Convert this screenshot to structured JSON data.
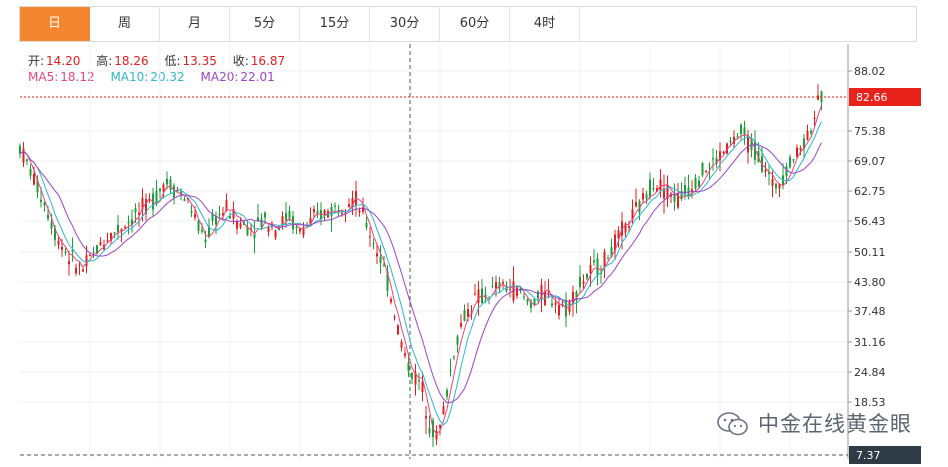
{
  "tabs": [
    "日",
    "周",
    "月",
    "5分",
    "15分",
    "30分",
    "60分",
    "4时"
  ],
  "active_tab": 0,
  "info": {
    "open_label": "开:",
    "open": "14.20",
    "high_label": "高:",
    "high": "18.26",
    "low_label": "低:",
    "low": "13.35",
    "close_label": "收:",
    "close": "16.87",
    "ma5_label": "MA5:",
    "ma5": "18.12",
    "ma10_label": "MA10:",
    "ma10": "20.32",
    "ma20_label": "MA20:",
    "ma20": "22.01"
  },
  "watermark": "中金在线黄金眼",
  "colors": {
    "up": "#e02020",
    "down": "#1e9e3a",
    "ma5": "#e8467a",
    "ma10": "#2fb6c9",
    "ma20": "#9b45c7",
    "price_tag": "#e8231b",
    "low_tag": "#2e3a46",
    "active_tab": "#f4862f"
  },
  "chart_data": {
    "type": "candlestick",
    "y_ticks": [
      "88.02",
      "82.66",
      "75.38",
      "69.07",
      "62.75",
      "56.43",
      "50.11",
      "43.80",
      "37.48",
      "31.16",
      "24.84",
      "18.53",
      "7.37"
    ],
    "y_tick_values": [
      88.02,
      82.66,
      75.38,
      69.07,
      62.75,
      56.43,
      50.11,
      43.8,
      37.48,
      31.16,
      24.84,
      18.53,
      7.37
    ],
    "ylim": [
      7.37,
      92.0
    ],
    "current_price": 82.66,
    "current_price_label": "82.66",
    "low_marker": 7.37,
    "low_marker_label": "7.37",
    "crosshair_x_fraction": 0.5,
    "approx_close_path": [
      [
        0.0,
        72
      ],
      [
        0.015,
        66
      ],
      [
        0.03,
        60
      ],
      [
        0.045,
        53
      ],
      [
        0.06,
        49
      ],
      [
        0.075,
        46
      ],
      [
        0.09,
        50
      ],
      [
        0.105,
        53
      ],
      [
        0.12,
        55
      ],
      [
        0.135,
        57
      ],
      [
        0.15,
        59
      ],
      [
        0.165,
        62
      ],
      [
        0.175,
        65
      ],
      [
        0.19,
        63
      ],
      [
        0.205,
        60
      ],
      [
        0.215,
        55
      ],
      [
        0.225,
        53
      ],
      [
        0.235,
        57
      ],
      [
        0.25,
        59
      ],
      [
        0.265,
        56
      ],
      [
        0.28,
        55
      ],
      [
        0.295,
        57
      ],
      [
        0.31,
        55
      ],
      [
        0.325,
        58
      ],
      [
        0.335,
        54
      ],
      [
        0.35,
        56
      ],
      [
        0.365,
        58
      ],
      [
        0.38,
        59
      ],
      [
        0.395,
        61
      ],
      [
        0.405,
        61
      ],
      [
        0.415,
        57
      ],
      [
        0.425,
        53
      ],
      [
        0.435,
        49
      ],
      [
        0.445,
        43
      ],
      [
        0.455,
        35
      ],
      [
        0.465,
        28
      ],
      [
        0.475,
        24
      ],
      [
        0.485,
        22
      ],
      [
        0.495,
        14
      ],
      [
        0.505,
        11
      ],
      [
        0.515,
        20
      ],
      [
        0.525,
        30
      ],
      [
        0.535,
        36
      ],
      [
        0.55,
        40
      ],
      [
        0.565,
        41
      ],
      [
        0.58,
        43
      ],
      [
        0.6,
        42
      ],
      [
        0.615,
        39
      ],
      [
        0.63,
        41
      ],
      [
        0.645,
        40
      ],
      [
        0.66,
        38
      ],
      [
        0.675,
        43
      ],
      [
        0.69,
        46
      ],
      [
        0.705,
        48
      ],
      [
        0.72,
        52
      ],
      [
        0.735,
        56
      ],
      [
        0.75,
        60
      ],
      [
        0.765,
        65
      ],
      [
        0.78,
        63
      ],
      [
        0.795,
        61
      ],
      [
        0.81,
        64
      ],
      [
        0.825,
        67
      ],
      [
        0.84,
        69
      ],
      [
        0.855,
        72
      ],
      [
        0.87,
        75
      ],
      [
        0.885,
        72
      ],
      [
        0.9,
        68
      ],
      [
        0.91,
        63
      ],
      [
        0.92,
        66
      ],
      [
        0.935,
        70
      ],
      [
        0.95,
        74
      ],
      [
        0.96,
        79
      ],
      [
        0.968,
        82.66
      ]
    ]
  }
}
